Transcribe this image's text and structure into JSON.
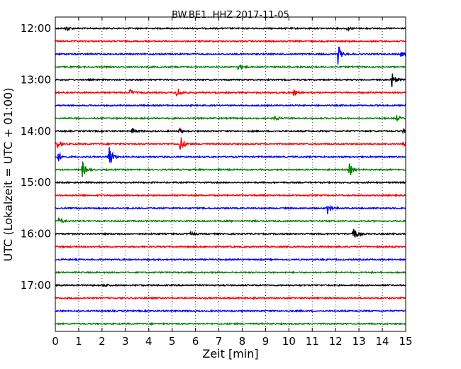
{
  "chart_data": {
    "type": "line",
    "title": "BW.BE1..HHZ 2017-11-05",
    "xlabel": "Zeit  [min]",
    "ylabel": "UTC (Lokalzeit = UTC + 01:00)",
    "xlim": [
      0,
      15
    ],
    "x_ticks": [
      "0",
      "1",
      "2",
      "3",
      "4",
      "5",
      "6",
      "7",
      "8",
      "9",
      "10",
      "11",
      "12",
      "13",
      "14",
      "15"
    ],
    "y_tick_labels": [
      "12:00",
      "13:00",
      "14:00",
      "15:00",
      "16:00",
      "17:00"
    ],
    "grid": true,
    "trace_interval_minutes": 15,
    "traces": [
      {
        "start": "12:00",
        "color": "#000000",
        "events": [
          {
            "t": 0.45,
            "amp": 0.35
          },
          {
            "t": 12.5,
            "amp": 0.2
          }
        ]
      },
      {
        "start": "12:15",
        "color": "#ff0000",
        "events": []
      },
      {
        "start": "12:30",
        "color": "#0000ff",
        "events": [
          {
            "t": 12.1,
            "amp": 1.0
          },
          {
            "t": 14.8,
            "amp": 0.25
          }
        ]
      },
      {
        "start": "12:45",
        "color": "#008000",
        "events": [
          {
            "t": 7.85,
            "amp": 0.4
          }
        ]
      },
      {
        "start": "13:00",
        "color": "#000000",
        "events": [
          {
            "t": 14.4,
            "amp": 0.85
          }
        ]
      },
      {
        "start": "13:15",
        "color": "#ff0000",
        "events": [
          {
            "t": 3.2,
            "amp": 0.35
          },
          {
            "t": 5.2,
            "amp": 0.7
          },
          {
            "t": 10.2,
            "amp": 0.3
          }
        ]
      },
      {
        "start": "13:30",
        "color": "#0000ff",
        "events": []
      },
      {
        "start": "13:45",
        "color": "#008000",
        "events": [
          {
            "t": 9.4,
            "amp": 0.3
          },
          {
            "t": 14.6,
            "amp": 0.3
          }
        ]
      },
      {
        "start": "14:00",
        "color": "#000000",
        "events": [
          {
            "t": 3.3,
            "amp": 0.25
          },
          {
            "t": 5.3,
            "amp": 0.25
          },
          {
            "t": 14.9,
            "amp": 0.2
          }
        ]
      },
      {
        "start": "14:15",
        "color": "#ff0000",
        "events": [
          {
            "t": 0.05,
            "amp": 0.5
          },
          {
            "t": 5.35,
            "amp": 0.95
          },
          {
            "t": 14.85,
            "amp": 0.45
          }
        ]
      },
      {
        "start": "14:30",
        "color": "#0000ff",
        "events": [
          {
            "t": 0.1,
            "amp": 0.6
          },
          {
            "t": 2.3,
            "amp": 1.4
          }
        ]
      },
      {
        "start": "14:45",
        "color": "#008000",
        "events": [
          {
            "t": 1.15,
            "amp": 0.85
          },
          {
            "t": 12.6,
            "amp": 0.75
          }
        ]
      },
      {
        "start": "15:00",
        "color": "#000000",
        "events": []
      },
      {
        "start": "15:15",
        "color": "#ff0000",
        "events": []
      },
      {
        "start": "15:30",
        "color": "#0000ff",
        "events": [
          {
            "t": 11.65,
            "amp": 0.65
          }
        ]
      },
      {
        "start": "15:45",
        "color": "#008000",
        "events": [
          {
            "t": 0.15,
            "amp": 0.35
          }
        ]
      },
      {
        "start": "16:00",
        "color": "#000000",
        "events": [
          {
            "t": 5.8,
            "amp": 0.2
          },
          {
            "t": 12.75,
            "amp": 0.85
          }
        ]
      },
      {
        "start": "16:15",
        "color": "#ff0000",
        "events": []
      },
      {
        "start": "16:30",
        "color": "#0000ff",
        "events": []
      },
      {
        "start": "16:45",
        "color": "#008000",
        "events": []
      },
      {
        "start": "17:00",
        "color": "#000000",
        "events": [
          {
            "t": 2.05,
            "amp": 0.2
          }
        ]
      },
      {
        "start": "17:15",
        "color": "#ff0000",
        "events": []
      },
      {
        "start": "17:30",
        "color": "#0000ff",
        "events": []
      },
      {
        "start": "17:45",
        "color": "#008000",
        "events": []
      }
    ]
  }
}
